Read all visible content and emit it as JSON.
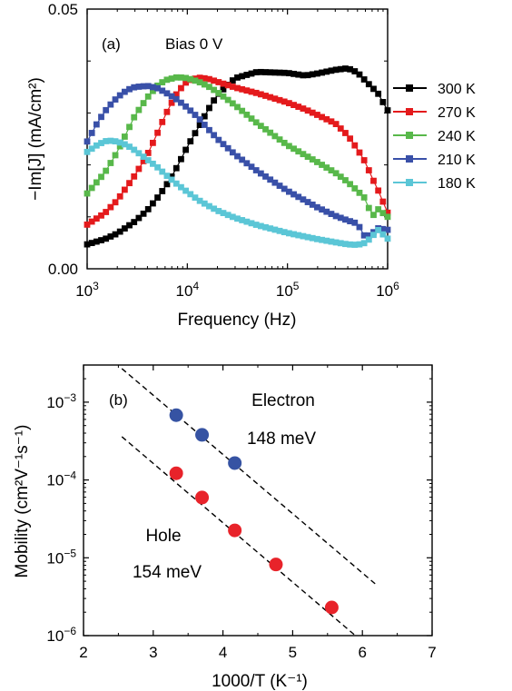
{
  "chart_data": [
    {
      "panel": "(a)",
      "type": "line",
      "annotation": "Bias 0 V",
      "xlabel": "Frequency (Hz)",
      "ylabel": "−Im[J] (mA/cm²)",
      "xscale": "log",
      "xlim": [
        1000,
        1000000
      ],
      "ylim": [
        0,
        0.05
      ],
      "xticks": [
        {
          "base": "10",
          "exp": "3"
        },
        {
          "base": "10",
          "exp": "4"
        },
        {
          "base": "10",
          "exp": "5"
        },
        {
          "base": "10",
          "exp": "6"
        }
      ],
      "yticks": [
        "0.00",
        "0.05"
      ],
      "legend_position": "right",
      "series": [
        {
          "name": "300 K",
          "color": "#000000",
          "x": [
            1000,
            1500,
            2000,
            3000,
            4000,
            5000,
            6000,
            7000,
            8000,
            10000,
            13000,
            16000,
            20000,
            30000,
            50000,
            100000,
            150000,
            200000,
            300000,
            400000,
            500000,
            600000,
            800000,
            1000000
          ],
          "y": [
            0.0047,
            0.0057,
            0.0068,
            0.0091,
            0.0113,
            0.0136,
            0.0157,
            0.0178,
            0.0198,
            0.0235,
            0.0273,
            0.0305,
            0.0335,
            0.0367,
            0.0379,
            0.0377,
            0.0372,
            0.0376,
            0.0383,
            0.0386,
            0.0378,
            0.0362,
            0.0338,
            0.0305
          ]
        },
        {
          "name": "270 K",
          "color": "#e41a1c",
          "x": [
            1000,
            1500,
            2000,
            3000,
            4000,
            5000,
            6000,
            7000,
            8000,
            10000,
            13000,
            16000,
            20000,
            30000,
            50000,
            100000,
            150000,
            200000,
            300000,
            400000,
            500000,
            600000,
            700000,
            800000,
            1000000
          ],
          "y": [
            0.0085,
            0.0107,
            0.0132,
            0.018,
            0.022,
            0.026,
            0.0295,
            0.032,
            0.034,
            0.0362,
            0.0368,
            0.0366,
            0.036,
            0.0349,
            0.0338,
            0.032,
            0.0307,
            0.0296,
            0.028,
            0.0257,
            0.023,
            0.0205,
            0.0175,
            0.0152,
            0.0108
          ]
        },
        {
          "name": "240 K",
          "color": "#58b84a",
          "x": [
            1000,
            1500,
            2000,
            3000,
            4000,
            5000,
            6000,
            8000,
            10000,
            13000,
            16000,
            20000,
            30000,
            50000,
            100000,
            200000,
            300000,
            400000,
            500000,
            600000,
            700000,
            800000,
            1000000
          ],
          "y": [
            0.0145,
            0.0185,
            0.0225,
            0.0295,
            0.033,
            0.0352,
            0.0363,
            0.0369,
            0.0367,
            0.036,
            0.0352,
            0.034,
            0.0315,
            0.028,
            0.0238,
            0.0205,
            0.0185,
            0.0167,
            0.015,
            0.0135,
            0.01,
            0.0115,
            0.01
          ]
        },
        {
          "name": "210 K",
          "color": "#3950a8",
          "x": [
            1000,
            1300,
            1600,
            2000,
            2500,
            3000,
            4000,
            5000,
            6000,
            8000,
            10000,
            13000,
            16000,
            20000,
            30000,
            50000,
            100000,
            200000,
            300000,
            400000,
            500000,
            600000,
            700000,
            800000,
            1000000
          ],
          "y": [
            0.0245,
            0.0285,
            0.031,
            0.033,
            0.0344,
            0.035,
            0.0352,
            0.0348,
            0.034,
            0.0325,
            0.031,
            0.029,
            0.027,
            0.025,
            0.022,
            0.0188,
            0.015,
            0.0118,
            0.0102,
            0.0093,
            0.0087,
            0.006,
            0.0068,
            0.0078,
            0.0075
          ]
        },
        {
          "name": "180 K",
          "color": "#5bc6d6",
          "x": [
            1000,
            1300,
            1600,
            2000,
            2500,
            3000,
            4000,
            5000,
            6000,
            8000,
            10000,
            13000,
            16000,
            20000,
            30000,
            50000,
            100000,
            200000,
            300000,
            400000,
            500000,
            600000,
            700000,
            800000,
            1000000
          ],
          "y": [
            0.0225,
            0.024,
            0.0247,
            0.0245,
            0.0238,
            0.0228,
            0.021,
            0.0196,
            0.0182,
            0.0162,
            0.0148,
            0.0132,
            0.0122,
            0.0112,
            0.0098,
            0.0084,
            0.0069,
            0.0057,
            0.0051,
            0.0047,
            0.0046,
            0.005,
            0.0062,
            0.0075,
            0.0058
          ]
        }
      ]
    },
    {
      "panel": "(b)",
      "type": "scatter",
      "xlabel": "1000/T (K⁻¹)",
      "ylabel": "Mobility (cm²V⁻¹s⁻¹)",
      "yscale": "log",
      "xlim": [
        2,
        7
      ],
      "ylim": [
        1e-06,
        0.003
      ],
      "xticks": [
        "2",
        "3",
        "4",
        "5",
        "6",
        "7"
      ],
      "yticks": [
        {
          "base": "10",
          "exp": "-6"
        },
        {
          "base": "10",
          "exp": "-5"
        },
        {
          "base": "10",
          "exp": "-4"
        },
        {
          "base": "10",
          "exp": "-3"
        }
      ],
      "series": [
        {
          "name": "Electron",
          "energy": "148 meV",
          "color": "#3653a3",
          "x": [
            3.33,
            3.7,
            4.17
          ],
          "y": [
            0.00068,
            0.00038,
            0.000165
          ],
          "fit_x": [
            2.55,
            6.2
          ],
          "fit_y": [
            0.0027,
            4.5e-06
          ]
        },
        {
          "name": "Hole",
          "energy": "154 meV",
          "color": "#e8232a",
          "x": [
            3.33,
            3.7,
            4.17,
            4.76,
            5.56
          ],
          "y": [
            0.000122,
            5.95e-05,
            2.25e-05,
            8.2e-06,
            2.3e-06
          ],
          "fit_x": [
            2.55,
            5.9
          ],
          "fit_y": [
            0.00036,
            1e-06
          ]
        }
      ]
    }
  ]
}
